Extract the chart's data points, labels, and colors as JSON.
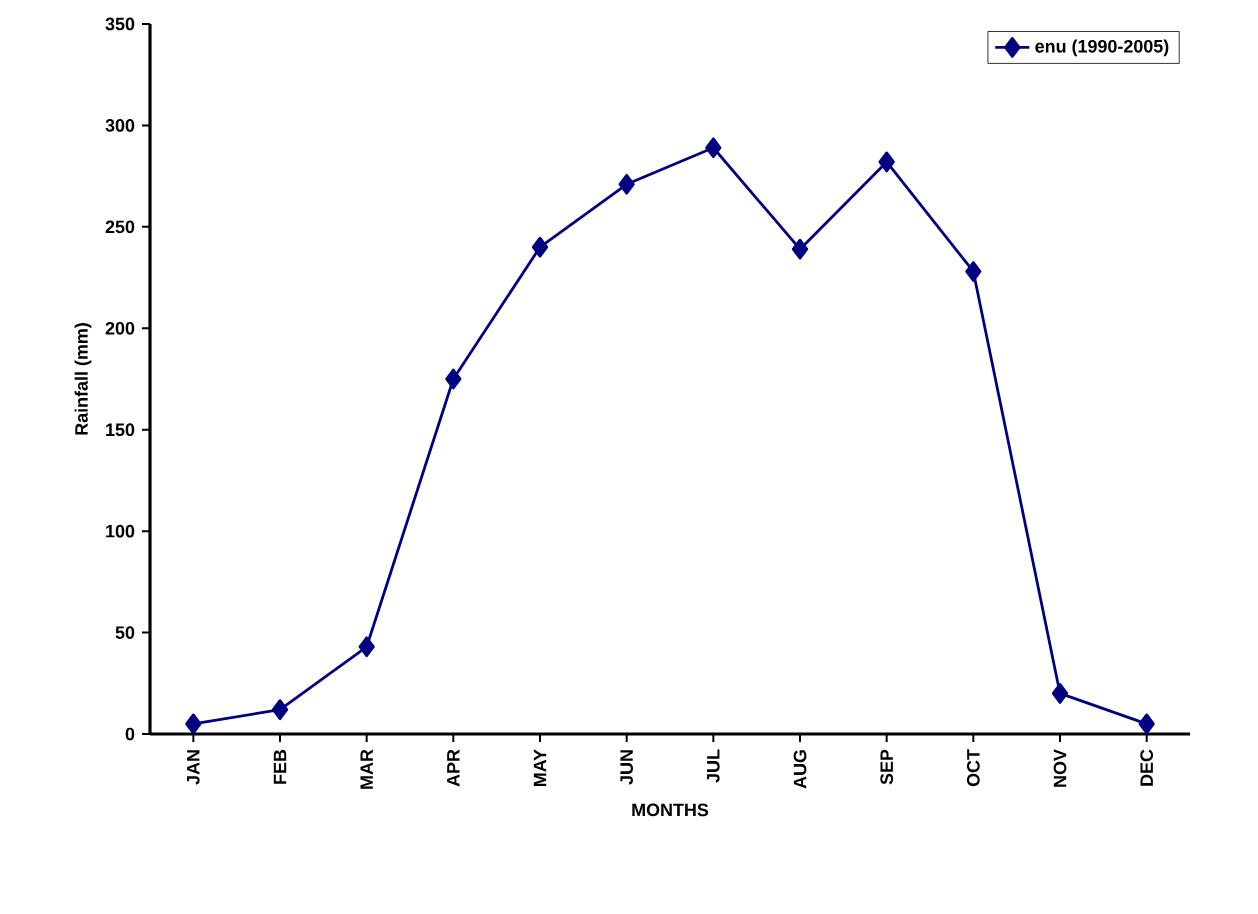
{
  "chart_data": {
    "type": "line",
    "xlabel": "MONTHS",
    "ylabel": "Rainfall (mm)",
    "categories": [
      "JAN",
      "FEB",
      "MAR",
      "APR",
      "MAY",
      "JUN",
      "JUL",
      "AUG",
      "SEP",
      "OCT",
      "NOV",
      "DEC"
    ],
    "series": [
      {
        "name": "enu (1990-2005)",
        "color": "#000080",
        "values": [
          5,
          12,
          43,
          175,
          240,
          271,
          289,
          239,
          282,
          228,
          20,
          5
        ]
      }
    ],
    "ylim": [
      0,
      350
    ],
    "yticks": [
      0,
      50,
      100,
      150,
      200,
      250,
      300,
      350
    ],
    "marker": "diamond",
    "line_style": "solid",
    "legend": "top right",
    "grid": false
  }
}
